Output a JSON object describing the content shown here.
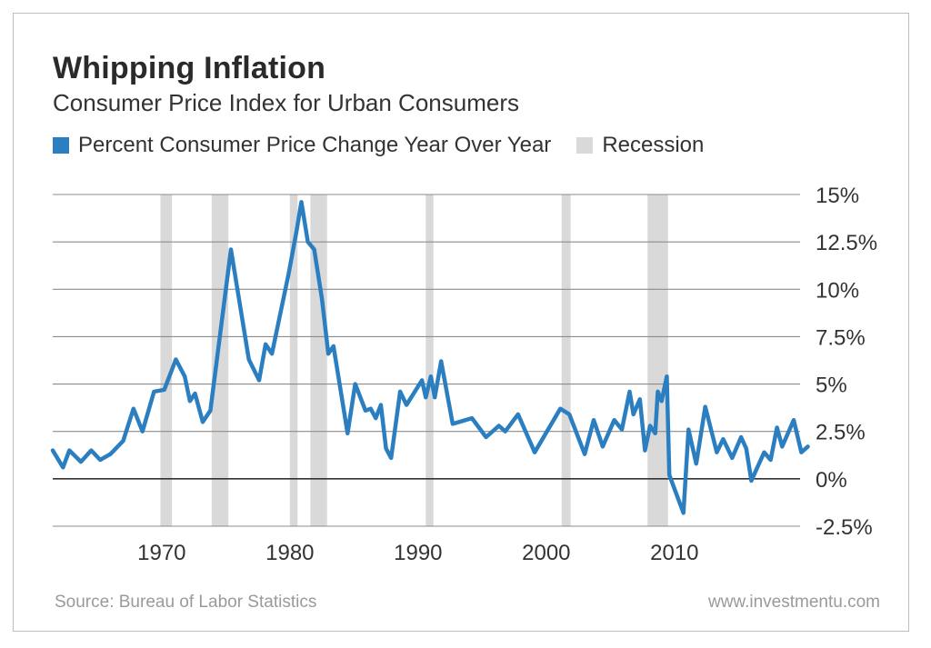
{
  "header": {
    "title": "Whipping Inflation",
    "subtitle": "Consumer Price Index for Urban Consumers"
  },
  "footer": {
    "source": "Source: Bureau of Labor Statistics",
    "site": "www.investmentu.com"
  },
  "colors": {
    "line": "#2b7fc1",
    "recession": "#d9d9d9",
    "grid": "#8c8c8c",
    "zero": "#333333"
  },
  "chart_data": {
    "type": "line",
    "title": "Whipping Inflation",
    "subtitle": "Consumer Price Index for Urban Consumers",
    "xlim": [
      1961.5,
      2019.8
    ],
    "ylim": [
      -2.5,
      15
    ],
    "y_ticks": [
      15,
      12.5,
      10,
      7.5,
      5,
      2.5,
      0,
      -2.5
    ],
    "y_tick_labels": [
      "15%",
      "12.5%",
      "10%",
      "7.5%",
      "5%",
      "2.5%",
      "0%",
      "-2.5%"
    ],
    "x_ticks": [
      1970,
      1980,
      1990,
      2000,
      2010
    ],
    "x_tick_labels": [
      "1970",
      "1980",
      "1990",
      "2000",
      "2010"
    ],
    "grid": true,
    "legend": [
      {
        "label": "Percent Consumer Price Change Year Over Year",
        "kind": "series"
      },
      {
        "label": "Recession",
        "kind": "recession"
      }
    ],
    "recessions": [
      [
        1969.9,
        1970.8
      ],
      [
        1973.9,
        1975.2
      ],
      [
        1980.0,
        1980.6
      ],
      [
        1981.6,
        1982.9
      ],
      [
        1990.6,
        1991.2
      ],
      [
        2001.2,
        2001.9
      ],
      [
        2007.9,
        2009.5
      ]
    ],
    "series": [
      {
        "name": "Percent Consumer Price Change Year Over Year",
        "points": [
          [
            1961.5,
            1.5
          ],
          [
            1962.3,
            0.6
          ],
          [
            1962.8,
            1.5
          ],
          [
            1963.7,
            0.9
          ],
          [
            1964.5,
            1.5
          ],
          [
            1965.2,
            1.0
          ],
          [
            1966.0,
            1.3
          ],
          [
            1967.0,
            2.0
          ],
          [
            1967.8,
            3.7
          ],
          [
            1968.5,
            2.5
          ],
          [
            1969.4,
            4.6
          ],
          [
            1970.2,
            4.7
          ],
          [
            1971.1,
            6.3
          ],
          [
            1971.8,
            5.4
          ],
          [
            1972.2,
            4.1
          ],
          [
            1972.6,
            4.5
          ],
          [
            1973.2,
            3.0
          ],
          [
            1973.8,
            3.6
          ],
          [
            1975.4,
            12.1
          ],
          [
            1976.8,
            6.3
          ],
          [
            1977.6,
            5.2
          ],
          [
            1978.1,
            7.1
          ],
          [
            1978.6,
            6.6
          ],
          [
            1979.9,
            10.8
          ],
          [
            1980.5,
            13.0
          ],
          [
            1980.9,
            14.6
          ],
          [
            1981.4,
            12.5
          ],
          [
            1981.9,
            12.1
          ],
          [
            1982.5,
            9.5
          ],
          [
            1983.0,
            6.6
          ],
          [
            1983.4,
            7.0
          ],
          [
            1984.5,
            2.4
          ],
          [
            1985.1,
            5.0
          ],
          [
            1985.9,
            3.6
          ],
          [
            1986.3,
            3.7
          ],
          [
            1986.7,
            3.2
          ],
          [
            1987.1,
            3.9
          ],
          [
            1987.5,
            1.6
          ],
          [
            1987.9,
            1.1
          ],
          [
            1988.6,
            4.6
          ],
          [
            1989.1,
            3.9
          ],
          [
            1990.3,
            5.2
          ],
          [
            1990.6,
            4.3
          ],
          [
            1991.0,
            5.4
          ],
          [
            1991.3,
            4.3
          ],
          [
            1991.8,
            6.2
          ],
          [
            1992.7,
            2.9
          ],
          [
            1994.2,
            3.2
          ],
          [
            1995.3,
            2.2
          ],
          [
            1996.3,
            2.8
          ],
          [
            1996.8,
            2.5
          ],
          [
            1997.8,
            3.4
          ],
          [
            1999.1,
            1.4
          ],
          [
            2001.1,
            3.7
          ],
          [
            2001.8,
            3.4
          ],
          [
            2003.0,
            1.3
          ],
          [
            2003.7,
            3.1
          ],
          [
            2004.4,
            1.7
          ],
          [
            2005.3,
            3.1
          ],
          [
            2005.9,
            2.6
          ],
          [
            2006.5,
            4.6
          ],
          [
            2006.8,
            3.4
          ],
          [
            2007.3,
            4.2
          ],
          [
            2007.7,
            1.5
          ],
          [
            2008.1,
            2.8
          ],
          [
            2008.5,
            2.4
          ],
          [
            2008.7,
            4.6
          ],
          [
            2009.0,
            4.1
          ],
          [
            2009.4,
            5.4
          ],
          [
            2009.6,
            0.2
          ],
          [
            2010.7,
            -1.8
          ],
          [
            2011.1,
            2.6
          ],
          [
            2011.7,
            0.8
          ],
          [
            2012.4,
            3.8
          ],
          [
            2013.3,
            1.4
          ],
          [
            2013.8,
            2.1
          ],
          [
            2014.5,
            1.1
          ],
          [
            2015.2,
            2.2
          ],
          [
            2015.6,
            1.6
          ],
          [
            2016.0,
            -0.1
          ],
          [
            2017.0,
            1.4
          ],
          [
            2017.5,
            1.0
          ],
          [
            2018.0,
            2.7
          ],
          [
            2018.4,
            1.7
          ],
          [
            2019.3,
            3.1
          ],
          [
            2019.9,
            1.4
          ],
          [
            2020.4,
            1.7
          ]
        ]
      }
    ]
  }
}
